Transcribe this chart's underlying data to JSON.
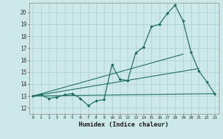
{
  "xlabel": "Humidex (Indice chaleur)",
  "xlim": [
    -0.5,
    23.5
  ],
  "ylim": [
    11.5,
    20.8
  ],
  "xticks": [
    0,
    1,
    2,
    3,
    4,
    5,
    6,
    7,
    8,
    9,
    10,
    11,
    12,
    13,
    14,
    15,
    16,
    17,
    18,
    19,
    20,
    21,
    22,
    23
  ],
  "yticks": [
    12,
    13,
    14,
    15,
    16,
    17,
    18,
    19,
    20
  ],
  "bg_color": "#cce8e8",
  "line_color": "#1a6b5a",
  "grid_color": "#b0d4d4",
  "main_line": {
    "x": [
      0,
      1,
      2,
      3,
      4,
      5,
      6,
      7,
      8,
      9,
      10,
      11,
      12,
      13,
      14,
      15,
      16,
      17,
      18,
      19,
      20,
      21,
      22,
      23
    ],
    "y": [
      13.0,
      13.1,
      12.8,
      12.9,
      13.1,
      13.2,
      12.8,
      12.2,
      12.6,
      12.7,
      15.6,
      14.4,
      14.3,
      16.6,
      17.1,
      18.8,
      19.0,
      19.9,
      20.6,
      19.3,
      16.7,
      15.1,
      14.2,
      13.2
    ]
  },
  "straight_lines": [
    {
      "x": [
        0,
        23
      ],
      "y": [
        13.0,
        13.2
      ]
    },
    {
      "x": [
        0,
        21
      ],
      "y": [
        13.0,
        15.3
      ]
    },
    {
      "x": [
        0,
        19
      ],
      "y": [
        13.0,
        16.5
      ]
    }
  ]
}
